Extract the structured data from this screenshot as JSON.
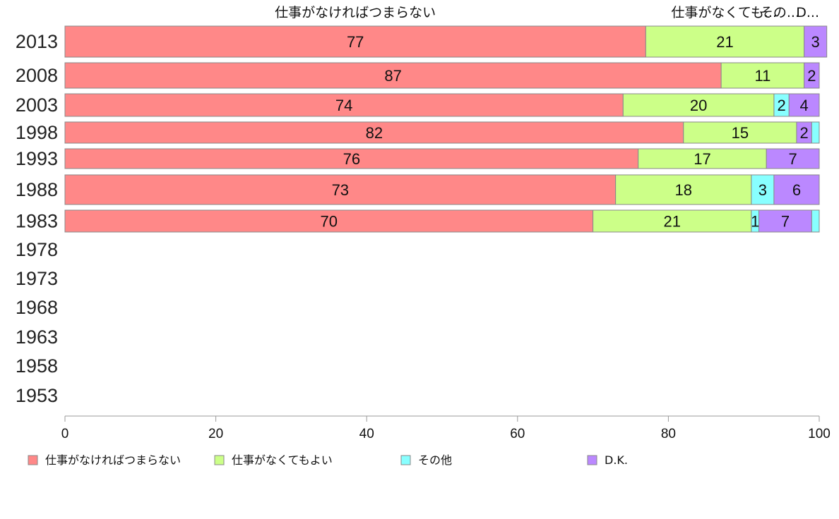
{
  "chart_data": {
    "type": "bar",
    "orientation": "horizontal",
    "stacked": true,
    "title": "",
    "xlabel": "",
    "ylabel": "",
    "xlim": [
      0,
      100
    ],
    "x_ticks": [
      "0",
      "20",
      "40",
      "60",
      "80",
      "100"
    ],
    "categories": [
      "2013",
      "2008",
      "2003",
      "1998",
      "1993",
      "1988",
      "1983",
      "1978",
      "1973",
      "1968",
      "1963",
      "1958",
      "1953"
    ],
    "series": [
      {
        "name": "仕事がなければつまらない",
        "color": "#ff8888",
        "values": [
          77,
          87,
          74,
          82,
          76,
          73,
          70,
          null,
          null,
          null,
          null,
          null,
          null
        ]
      },
      {
        "name": "仕事がなくてもよい",
        "color": "#ccff88",
        "values": [
          21,
          11,
          20,
          15,
          17,
          18,
          21,
          null,
          null,
          null,
          null,
          null,
          null
        ]
      },
      {
        "name": "その他",
        "color": "#88ffff",
        "values": [
          0,
          0,
          2,
          0,
          0,
          3,
          1,
          null,
          null,
          null,
          null,
          null,
          null
        ]
      },
      {
        "name": "D.K.",
        "color": "#bb88ff",
        "values": [
          3,
          2,
          4,
          2,
          7,
          6,
          7,
          null,
          null,
          null,
          null,
          null,
          null
        ]
      }
    ],
    "bar_labels": [
      [
        "77",
        "21",
        "",
        "3"
      ],
      [
        "87",
        "11",
        "",
        "2"
      ],
      [
        "74",
        "20",
        "2",
        "4"
      ],
      [
        "82",
        "15",
        "",
        "2"
      ],
      [
        "76",
        "17",
        "",
        "7"
      ],
      [
        "73",
        "18",
        "3",
        "6"
      ],
      [
        "70",
        "21",
        "1",
        "7"
      ],
      [],
      [],
      [],
      [],
      [],
      []
    ],
    "top_headers": [
      "仕事がなければつまらない",
      "仕事がなくても...",
      "その...",
      "D..."
    ],
    "grid": false,
    "legend_position": "bottom"
  }
}
